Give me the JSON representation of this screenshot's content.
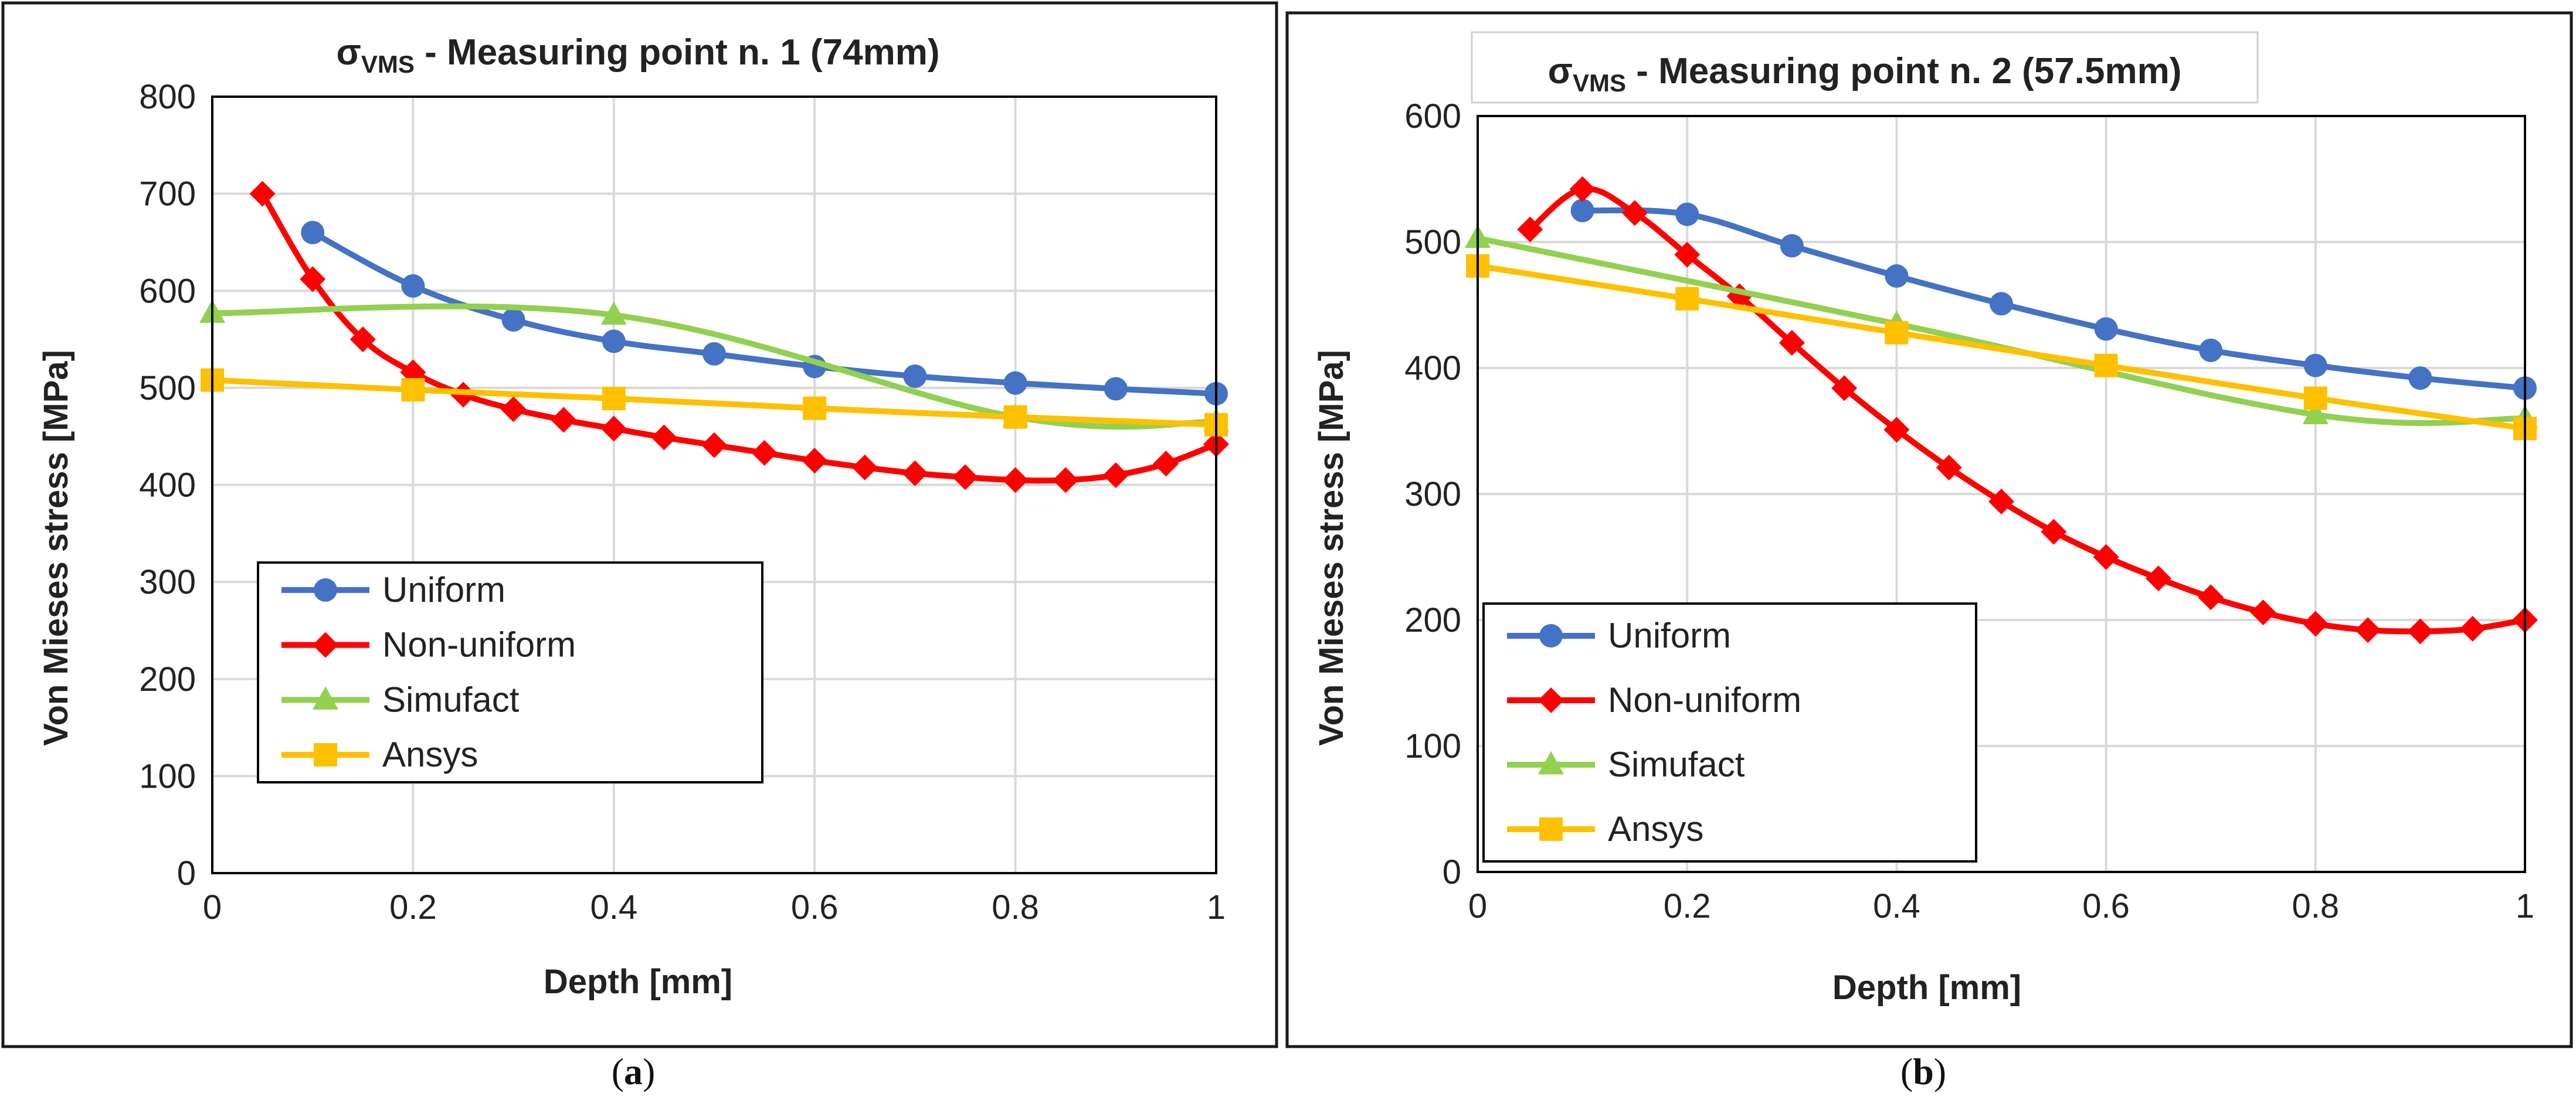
{
  "panels": [
    {
      "id": "a",
      "caption_letter": "a",
      "title_prefix": "σ",
      "title_sub": "VMS",
      "title_rest": " - Measuring point n. 1 (74mm)",
      "xlabel": "Depth [mm]",
      "ylabel": "Von Mieses stress [MPa]",
      "legend_position": "bottom-left"
    },
    {
      "id": "b",
      "caption_letter": "b",
      "title_prefix": "σ",
      "title_sub": "VMS",
      "title_rest": " - Measuring point n. 2 (57.5mm)",
      "xlabel": "Depth [mm]",
      "ylabel": "Von Mieses stress [MPa]",
      "legend_position": "bottom-left"
    }
  ],
  "chart_data": [
    {
      "type": "line",
      "title": "σVMS - Measuring point n. 1 (74mm)",
      "xlabel": "Depth [mm]",
      "ylabel": "Von Mieses stress [MPa]",
      "xlim": [
        0,
        1
      ],
      "ylim": [
        0,
        800
      ],
      "xticks": [
        0,
        0.2,
        0.4,
        0.6,
        0.8,
        1
      ],
      "xtick_labels": [
        "0",
        "0.2",
        "0.4",
        "0.6",
        "0.8",
        "1"
      ],
      "yticks": [
        0,
        100,
        200,
        300,
        400,
        500,
        600,
        700,
        800
      ],
      "ytick_labels": [
        "0",
        "100",
        "200",
        "300",
        "400",
        "500",
        "600",
        "700",
        "800"
      ],
      "grid": true,
      "series": [
        {
          "name": "Uniform",
          "color": "#4472C4",
          "marker": "circle",
          "x": [
            0.1,
            0.2,
            0.3,
            0.4,
            0.5,
            0.6,
            0.7,
            0.8,
            0.9,
            1.0
          ],
          "y": [
            660,
            605,
            570,
            548,
            535,
            522,
            512,
            505,
            499,
            494
          ]
        },
        {
          "name": "Non-uniform",
          "color": "#FF0000",
          "marker": "diamond",
          "x": [
            0.05,
            0.1,
            0.15,
            0.2,
            0.25,
            0.3,
            0.35,
            0.4,
            0.45,
            0.5,
            0.55,
            0.6,
            0.65,
            0.7,
            0.75,
            0.8,
            0.85,
            0.9,
            0.95,
            1.0
          ],
          "y": [
            700,
            612,
            550,
            516,
            493,
            478,
            467,
            458,
            449,
            441,
            433,
            425,
            418,
            412,
            408,
            405,
            405,
            410,
            422,
            442
          ]
        },
        {
          "name": "Simufact",
          "color": "#92D050",
          "marker": "triangle",
          "x": [
            0,
            0.4,
            0.8,
            1.0
          ],
          "y": [
            577,
            575,
            470,
            465
          ]
        },
        {
          "name": "Ansys",
          "color": "#FFC000",
          "marker": "square",
          "x": [
            0,
            0.2,
            0.4,
            0.6,
            0.8,
            1.0
          ],
          "y": [
            508,
            498,
            489,
            479,
            470,
            462
          ]
        }
      ]
    },
    {
      "type": "line",
      "title": "σVMS - Measuring point n. 2 (57.5mm)",
      "xlabel": "Depth [mm]",
      "ylabel": "Von Mieses stress [MPa]",
      "xlim": [
        0,
        1
      ],
      "ylim": [
        0,
        600
      ],
      "xticks": [
        0,
        0.2,
        0.4,
        0.6,
        0.8,
        1
      ],
      "xtick_labels": [
        "0",
        "0.2",
        "0.4",
        "0.6",
        "0.8",
        "1"
      ],
      "yticks": [
        0,
        100,
        200,
        300,
        400,
        500,
        600
      ],
      "ytick_labels": [
        "0",
        "100",
        "200",
        "300",
        "400",
        "500",
        "600"
      ],
      "grid": true,
      "series": [
        {
          "name": "Uniform",
          "color": "#4472C4",
          "marker": "circle",
          "x": [
            0.1,
            0.2,
            0.3,
            0.4,
            0.5,
            0.6,
            0.7,
            0.8,
            0.9,
            1.0
          ],
          "y": [
            525,
            522,
            497,
            473,
            451,
            431,
            414,
            402,
            392,
            384
          ]
        },
        {
          "name": "Non-uniform",
          "color": "#FF0000",
          "marker": "diamond",
          "x": [
            0.05,
            0.1,
            0.15,
            0.2,
            0.25,
            0.3,
            0.35,
            0.4,
            0.45,
            0.5,
            0.55,
            0.6,
            0.65,
            0.7,
            0.75,
            0.8,
            0.85,
            0.9,
            0.95,
            1.0
          ],
          "y": [
            510,
            542,
            523,
            490,
            457,
            420,
            384,
            351,
            321,
            294,
            270,
            250,
            233,
            218,
            206,
            197,
            192,
            191,
            193,
            200
          ]
        },
        {
          "name": "Simufact",
          "color": "#92D050",
          "marker": "triangle",
          "x": [
            0,
            0.4,
            0.8,
            1.0
          ],
          "y": [
            503,
            435,
            363,
            360
          ]
        },
        {
          "name": "Ansys",
          "color": "#FFC000",
          "marker": "square",
          "x": [
            0,
            0.2,
            0.4,
            0.6,
            0.8,
            1.0
          ],
          "y": [
            481,
            455,
            428,
            402,
            376,
            352
          ]
        }
      ]
    }
  ]
}
